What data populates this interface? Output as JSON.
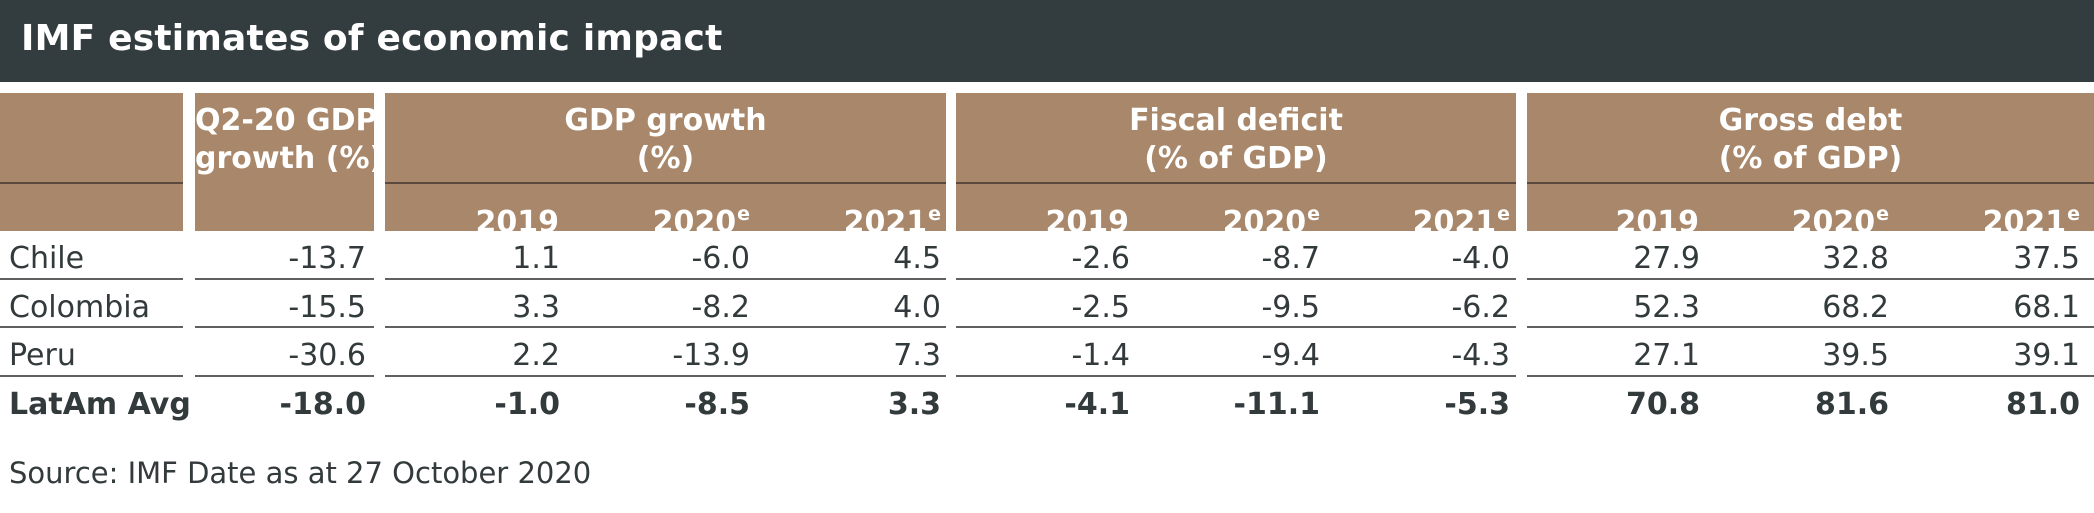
{
  "title": "IMF estimates of economic impact",
  "groups": [
    {
      "line1": "Q2-20 GDP",
      "line2": "growth (%)"
    },
    {
      "line1": "GDP growth",
      "line2": "(%)"
    },
    {
      "line1": "Fiscal deficit",
      "line2": "(% of GDP)"
    },
    {
      "line1": "Gross debt",
      "line2": "(% of GDP)"
    }
  ],
  "years": [
    {
      "label": "2019",
      "sup": ""
    },
    {
      "label": "2020",
      "sup": "e"
    },
    {
      "label": "2021",
      "sup": "e"
    }
  ],
  "rows": [
    {
      "label": "Chile",
      "q2": "-13.7",
      "gdp": [
        "1.1",
        "-6.0",
        "4.5"
      ],
      "fiscal": [
        "-2.6",
        "-8.7",
        "-4.0"
      ],
      "debt": [
        "27.9",
        "32.8",
        "37.5"
      ]
    },
    {
      "label": "Colombia",
      "q2": "-15.5",
      "gdp": [
        "3.3",
        "-8.2",
        "4.0"
      ],
      "fiscal": [
        "-2.5",
        "-9.5",
        "-6.2"
      ],
      "debt": [
        "52.3",
        "68.2",
        "68.1"
      ]
    },
    {
      "label": "Peru",
      "q2": "-30.6",
      "gdp": [
        "2.2",
        "-13.9",
        "7.3"
      ],
      "fiscal": [
        "-1.4",
        "-9.4",
        "-4.3"
      ],
      "debt": [
        "27.1",
        "39.5",
        "39.1"
      ]
    },
    {
      "label": "LatAm Avg",
      "q2": "-18.0",
      "gdp": [
        "-1.0",
        "-8.5",
        "3.3"
      ],
      "fiscal": [
        "-4.1",
        "-11.1",
        "-5.3"
      ],
      "debt": [
        "70.8",
        "81.6",
        "81.0"
      ]
    }
  ],
  "source": "Source: IMF Date as at 27 October 2020",
  "colors": {
    "title_bg": "#333c3e",
    "header_bg": "#a8876a",
    "text": "#333a3c"
  }
}
